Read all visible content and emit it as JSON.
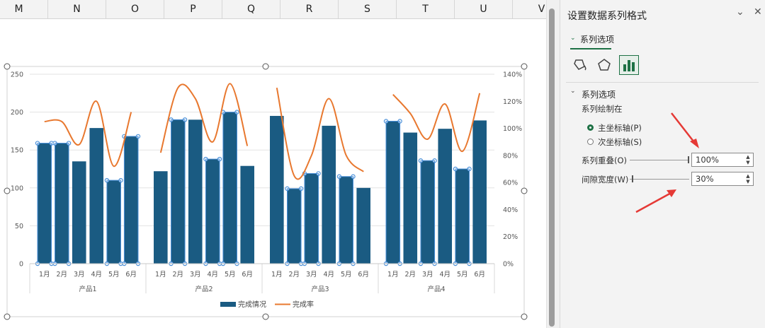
{
  "columns": [
    "M",
    "N",
    "O",
    "P",
    "Q",
    "R",
    "S",
    "T",
    "U",
    "V"
  ],
  "pane": {
    "title": "设置数据系列格式",
    "tab_label": "系列选项",
    "section_title": "系列选项",
    "plot_on_label": "系列绘制在",
    "primary_axis": "主坐标轴(P)",
    "secondary_axis": "次坐标轴(S)",
    "overlap_label": "系列重叠(O)",
    "overlap_value": "100%",
    "gap_label": "间隙宽度(W)",
    "gap_value": "30%",
    "icons": [
      "fill-line-icon",
      "effects-icon",
      "series-options-icon"
    ],
    "accent_color": "#1e7145"
  },
  "chart_data": {
    "type": "bar",
    "categories": [
      "1月",
      "2月",
      "3月",
      "4月",
      "5月",
      "6月"
    ],
    "groups": [
      "产品1",
      "产品2",
      "产品3",
      "产品4"
    ],
    "series": [
      {
        "name": "完成情况",
        "type": "bar",
        "color": "#1a5b82",
        "values": [
          [
            159,
            159,
            135,
            179,
            110,
            168
          ],
          [
            122,
            190,
            190,
            138,
            200,
            129
          ],
          [
            195,
            99,
            119,
            182,
            115,
            100
          ],
          [
            188,
            173,
            136,
            178,
            125,
            189
          ]
        ]
      },
      {
        "name": "完成率",
        "type": "line",
        "smooth": true,
        "axis": "secondary",
        "color": "#e8782f",
        "values": [
          [
            1.05,
            1.05,
            0.88,
            1.2,
            0.72,
            1.12
          ],
          [
            0.82,
            1.3,
            1.22,
            0.9,
            1.33,
            0.87
          ],
          [
            1.3,
            0.65,
            0.8,
            1.22,
            0.8,
            0.68
          ],
          [
            1.25,
            1.11,
            0.92,
            1.18,
            0.83,
            1.26
          ]
        ]
      }
    ],
    "y_ticks": [
      "250",
      "200",
      "150",
      "100",
      "50",
      "0"
    ],
    "y2_ticks": [
      "140%",
      "120%",
      "100%",
      "80%",
      "60%",
      "40%",
      "20%",
      "0%"
    ],
    "ylim": [
      0,
      250
    ],
    "y2lim": [
      0,
      1.4
    ],
    "legend_position": "bottom",
    "grid": true
  }
}
